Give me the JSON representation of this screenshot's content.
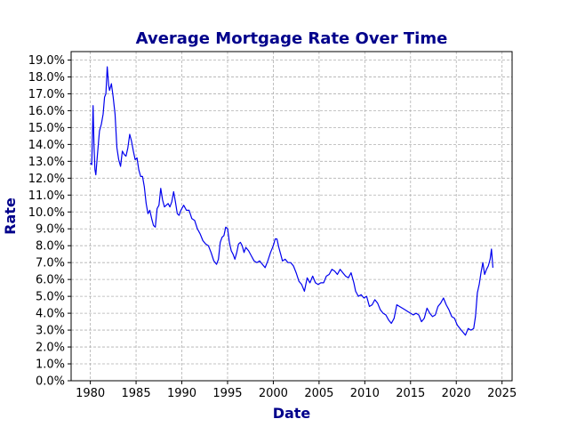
{
  "chart_data": {
    "type": "line",
    "title": "Average Mortgage Rate Over Time",
    "xlabel": "Date",
    "ylabel": "Rate",
    "xlim": [
      1977.9,
      2026.1
    ],
    "ylim": [
      0.0,
      0.195
    ],
    "x_ticks": [
      1980,
      1985,
      1990,
      1995,
      2000,
      2005,
      2010,
      2015,
      2020,
      2025
    ],
    "x_tick_labels": [
      "1980",
      "1985",
      "1990",
      "1995",
      "2000",
      "2005",
      "2010",
      "2015",
      "2020",
      "2025"
    ],
    "y_ticks": [
      0.0,
      0.01,
      0.02,
      0.03,
      0.04,
      0.05,
      0.06,
      0.07,
      0.08,
      0.09,
      0.1,
      0.11,
      0.12,
      0.13,
      0.14,
      0.15,
      0.16,
      0.17,
      0.18,
      0.19
    ],
    "y_tick_labels": [
      "0.0%",
      "1.0%",
      "2.0%",
      "3.0%",
      "4.0%",
      "5.0%",
      "6.0%",
      "7.0%",
      "8.0%",
      "9.0%",
      "10.0%",
      "11.0%",
      "12.0%",
      "13.0%",
      "14.0%",
      "15.0%",
      "16.0%",
      "17.0%",
      "18.0%",
      "19.0%"
    ],
    "grid": true,
    "series": [
      {
        "color": "#0000ee",
        "x": [
          1980.0,
          1980.15,
          1980.3,
          1980.4,
          1980.5,
          1980.6,
          1980.75,
          1980.9,
          1981.0,
          1981.2,
          1981.4,
          1981.55,
          1981.7,
          1981.85,
          1982.0,
          1982.1,
          1982.3,
          1982.5,
          1982.7,
          1982.9,
          1983.1,
          1983.3,
          1983.5,
          1983.7,
          1983.9,
          1984.1,
          1984.3,
          1984.5,
          1984.7,
          1984.9,
          1985.1,
          1985.3,
          1985.5,
          1985.7,
          1985.9,
          1986.1,
          1986.3,
          1986.5,
          1986.7,
          1986.9,
          1987.1,
          1987.3,
          1987.5,
          1987.7,
          1987.9,
          1988.1,
          1988.3,
          1988.5,
          1988.7,
          1988.9,
          1989.1,
          1989.3,
          1989.5,
          1989.7,
          1989.9,
          1990.2,
          1990.5,
          1990.8,
          1991.1,
          1991.4,
          1991.7,
          1992.0,
          1992.3,
          1992.6,
          1992.9,
          1993.2,
          1993.5,
          1993.8,
          1994.0,
          1994.2,
          1994.4,
          1994.6,
          1994.8,
          1995.0,
          1995.2,
          1995.4,
          1995.6,
          1995.8,
          1996.0,
          1996.2,
          1996.4,
          1996.6,
          1996.8,
          1997.0,
          1997.3,
          1997.6,
          1997.9,
          1998.2,
          1998.5,
          1998.8,
          1999.1,
          1999.4,
          1999.7,
          2000.0,
          2000.2,
          2000.4,
          2000.6,
          2000.8,
          2001.0,
          2001.3,
          2001.6,
          2001.9,
          2002.2,
          2002.5,
          2002.8,
          2003.1,
          2003.4,
          2003.7,
          2004.0,
          2004.3,
          2004.6,
          2004.9,
          2005.2,
          2005.5,
          2005.8,
          2006.1,
          2006.4,
          2006.7,
          2007.0,
          2007.3,
          2007.6,
          2007.9,
          2008.2,
          2008.5,
          2008.8,
          2009.0,
          2009.3,
          2009.6,
          2009.9,
          2010.2,
          2010.5,
          2010.8,
          2011.1,
          2011.4,
          2011.7,
          2012.0,
          2012.3,
          2012.6,
          2012.9,
          2013.2,
          2013.5,
          2013.8,
          2014.1,
          2014.4,
          2014.7,
          2015.0,
          2015.3,
          2015.6,
          2015.9,
          2016.2,
          2016.5,
          2016.8,
          2017.1,
          2017.4,
          2017.7,
          2018.0,
          2018.3,
          2018.6,
          2018.9,
          2019.2,
          2019.5,
          2019.8,
          2020.1,
          2020.4,
          2020.7,
          2021.0,
          2021.3,
          2021.6,
          2021.9,
          2022.1,
          2022.3,
          2022.5,
          2022.7,
          2022.9,
          2023.1,
          2023.3,
          2023.5,
          2023.7,
          2023.85,
          2024.0
        ],
        "y": [
          0.129,
          0.128,
          0.163,
          0.14,
          0.125,
          0.122,
          0.132,
          0.142,
          0.148,
          0.152,
          0.158,
          0.168,
          0.17,
          0.186,
          0.175,
          0.172,
          0.176,
          0.168,
          0.158,
          0.138,
          0.131,
          0.127,
          0.136,
          0.134,
          0.133,
          0.138,
          0.146,
          0.142,
          0.136,
          0.131,
          0.132,
          0.125,
          0.121,
          0.121,
          0.115,
          0.105,
          0.099,
          0.101,
          0.096,
          0.092,
          0.091,
          0.102,
          0.104,
          0.114,
          0.107,
          0.103,
          0.104,
          0.105,
          0.103,
          0.106,
          0.112,
          0.106,
          0.099,
          0.098,
          0.101,
          0.104,
          0.101,
          0.101,
          0.096,
          0.095,
          0.09,
          0.087,
          0.083,
          0.081,
          0.08,
          0.076,
          0.071,
          0.069,
          0.072,
          0.082,
          0.085,
          0.086,
          0.091,
          0.09,
          0.082,
          0.077,
          0.075,
          0.072,
          0.076,
          0.081,
          0.082,
          0.08,
          0.076,
          0.079,
          0.077,
          0.074,
          0.071,
          0.07,
          0.071,
          0.069,
          0.067,
          0.071,
          0.076,
          0.08,
          0.084,
          0.084,
          0.079,
          0.075,
          0.071,
          0.072,
          0.07,
          0.07,
          0.068,
          0.064,
          0.059,
          0.057,
          0.053,
          0.061,
          0.058,
          0.062,
          0.058,
          0.057,
          0.058,
          0.058,
          0.062,
          0.063,
          0.066,
          0.065,
          0.063,
          0.066,
          0.064,
          0.062,
          0.061,
          0.064,
          0.058,
          0.053,
          0.05,
          0.051,
          0.049,
          0.05,
          0.044,
          0.045,
          0.048,
          0.046,
          0.042,
          0.04,
          0.039,
          0.036,
          0.034,
          0.037,
          0.045,
          0.044,
          0.043,
          0.042,
          0.041,
          0.04,
          0.039,
          0.04,
          0.039,
          0.035,
          0.037,
          0.043,
          0.04,
          0.038,
          0.039,
          0.044,
          0.046,
          0.049,
          0.045,
          0.042,
          0.038,
          0.037,
          0.033,
          0.031,
          0.029,
          0.027,
          0.031,
          0.03,
          0.031,
          0.038,
          0.052,
          0.057,
          0.064,
          0.07,
          0.063,
          0.066,
          0.068,
          0.072,
          0.078,
          0.067
        ]
      }
    ]
  }
}
